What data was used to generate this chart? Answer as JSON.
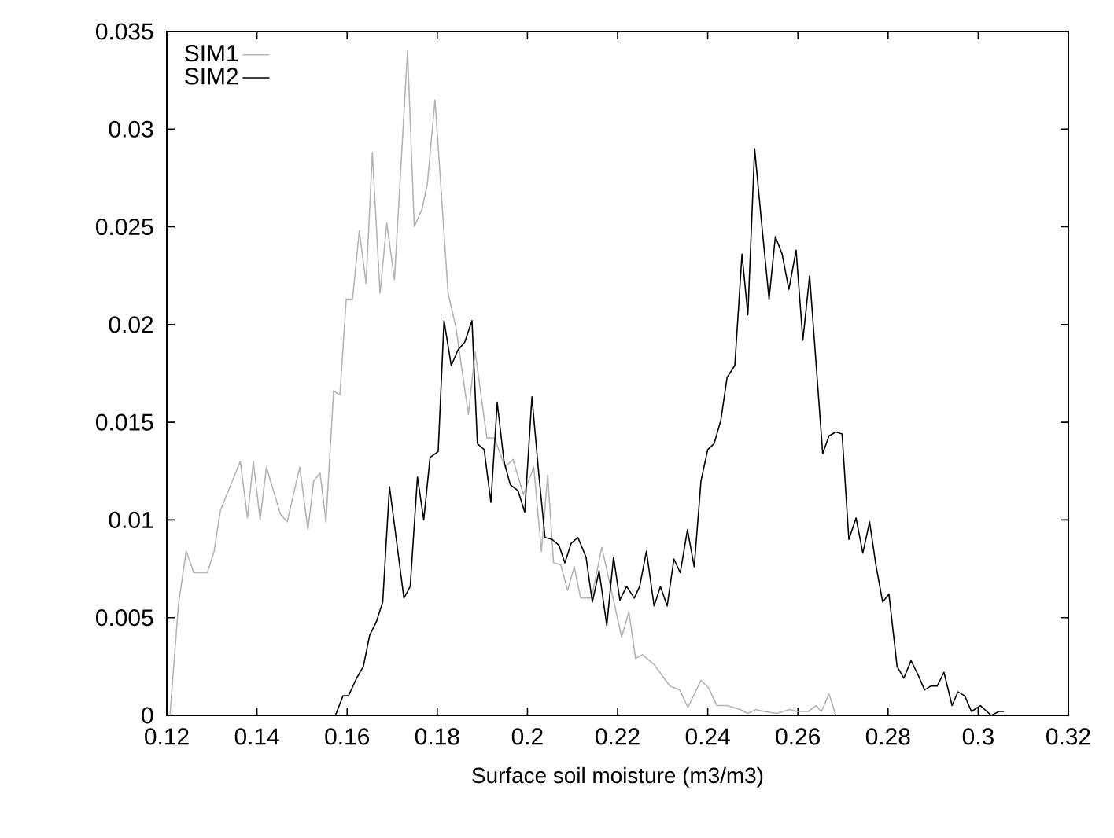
{
  "chart_data": {
    "type": "line",
    "xlabel": "Surface soil moisture (m3/m3)",
    "xlim": [
      0.12,
      0.32
    ],
    "ylim": [
      0,
      0.035
    ],
    "xticks": [
      0.12,
      0.14,
      0.16,
      0.18,
      0.2,
      0.22,
      0.24,
      0.26,
      0.28,
      0.3,
      0.32
    ],
    "yticks": [
      0,
      0.005,
      0.01,
      0.015,
      0.02,
      0.025,
      0.03,
      0.035
    ],
    "legend": "top left",
    "series": [
      {
        "name": "SIM1",
        "color": "#b4b4b4",
        "x": [
          0.1207,
          0.1226,
          0.1243,
          0.126,
          0.129,
          0.1305,
          0.1319,
          0.1363,
          0.1379,
          0.1392,
          0.1407,
          0.1421,
          0.1452,
          0.1467,
          0.1495,
          0.1513,
          0.1526,
          0.154,
          0.1553,
          0.157,
          0.1584,
          0.1598,
          0.1612,
          0.1627,
          0.1642,
          0.1656,
          0.1673,
          0.1688,
          0.1705,
          0.1734,
          0.1749,
          0.1766,
          0.1778,
          0.1795,
          0.1824,
          0.1841,
          0.1869,
          0.1884,
          0.191,
          0.1927,
          0.195,
          0.1968,
          0.1991,
          0.2014,
          0.2031,
          0.2045,
          0.2058,
          0.2074,
          0.2089,
          0.2104,
          0.2118,
          0.2142,
          0.2165,
          0.2188,
          0.2209,
          0.2225,
          0.224,
          0.2255,
          0.2281,
          0.2316,
          0.2338,
          0.2356,
          0.2385,
          0.2402,
          0.242,
          0.2443,
          0.2472,
          0.2489,
          0.2507,
          0.2524,
          0.2553,
          0.2582,
          0.2599,
          0.2623,
          0.264,
          0.2652,
          0.2669,
          0.2684
        ],
        "values": [
          0,
          0.0057,
          0.0084,
          0.0073,
          0.0073,
          0.0084,
          0.0105,
          0.013,
          0.0101,
          0.013,
          0.01,
          0.0127,
          0.0103,
          0.0099,
          0.0127,
          0.0095,
          0.012,
          0.0124,
          0.0099,
          0.0166,
          0.0164,
          0.0213,
          0.0213,
          0.0248,
          0.0221,
          0.0288,
          0.0216,
          0.0252,
          0.0223,
          0.034,
          0.025,
          0.0259,
          0.0272,
          0.0315,
          0.0216,
          0.0199,
          0.0154,
          0.0186,
          0.0142,
          0.0142,
          0.0127,
          0.0131,
          0.0113,
          0.0127,
          0.0084,
          0.0123,
          0.0078,
          0.0077,
          0.0064,
          0.0076,
          0.006,
          0.006,
          0.0086,
          0.0062,
          0.004,
          0.0053,
          0.0029,
          0.0031,
          0.0026,
          0.0015,
          0.0013,
          0.0004,
          0.0018,
          0.0014,
          0.0005,
          0.0005,
          0.0003,
          0.0001,
          0.0003,
          0.0002,
          0.0001,
          0.0003,
          0.0002,
          0.0002,
          0.0005,
          0.0002,
          0.0011,
          0
        ]
      },
      {
        "name": "SIM2",
        "color": "#000000",
        "x": [
          0.1574,
          0.1591,
          0.1603,
          0.1621,
          0.1636,
          0.165,
          0.1665,
          0.1679,
          0.1694,
          0.1726,
          0.174,
          0.1756,
          0.177,
          0.1784,
          0.1802,
          0.1815,
          0.1831,
          0.1846,
          0.1861,
          0.1877,
          0.1889,
          0.1904,
          0.1919,
          0.1933,
          0.1948,
          0.1962,
          0.1979,
          0.1994,
          0.201,
          0.2025,
          0.2039,
          0.2055,
          0.207,
          0.2083,
          0.2097,
          0.2112,
          0.213,
          0.2144,
          0.2159,
          0.2176,
          0.2191,
          0.2205,
          0.222,
          0.2237,
          0.2249,
          0.2264,
          0.2281,
          0.2295,
          0.231,
          0.2325,
          0.2339,
          0.2355,
          0.237,
          0.2385,
          0.24,
          0.2414,
          0.2429,
          0.2443,
          0.246,
          0.2476,
          0.2489,
          0.2504,
          0.2519,
          0.2536,
          0.255,
          0.2565,
          0.258,
          0.2596,
          0.2611,
          0.2626,
          0.264,
          0.2655,
          0.2669,
          0.2684,
          0.2698,
          0.2713,
          0.2729,
          0.2744,
          0.2759,
          0.2773,
          0.2788,
          0.2802,
          0.282,
          0.2835,
          0.2851,
          0.2866,
          0.2881,
          0.2895,
          0.2909,
          0.2924,
          0.2942,
          0.2955,
          0.297,
          0.2985,
          0.3005,
          0.3029,
          0.3046,
          0.3057
        ],
        "values": [
          0,
          0.001,
          0.001,
          0.0019,
          0.0025,
          0.0041,
          0.0048,
          0.0058,
          0.0117,
          0.006,
          0.0066,
          0.0122,
          0.01,
          0.0132,
          0.0135,
          0.0202,
          0.0179,
          0.0187,
          0.0191,
          0.0202,
          0.0139,
          0.0136,
          0.0109,
          0.016,
          0.013,
          0.0118,
          0.0115,
          0.0104,
          0.0163,
          0.0124,
          0.0091,
          0.009,
          0.0087,
          0.0078,
          0.0088,
          0.0091,
          0.0081,
          0.0058,
          0.0074,
          0.0046,
          0.0081,
          0.0059,
          0.0066,
          0.006,
          0.0066,
          0.0084,
          0.0056,
          0.0066,
          0.0056,
          0.008,
          0.0073,
          0.0095,
          0.0076,
          0.012,
          0.0136,
          0.0139,
          0.0151,
          0.0173,
          0.0179,
          0.0236,
          0.0205,
          0.029,
          0.0253,
          0.0213,
          0.0245,
          0.0236,
          0.0218,
          0.0238,
          0.0192,
          0.0225,
          0.0181,
          0.0134,
          0.0143,
          0.0145,
          0.0144,
          0.009,
          0.0101,
          0.0083,
          0.0099,
          0.0077,
          0.0058,
          0.0062,
          0.0025,
          0.0019,
          0.0028,
          0.0021,
          0.0013,
          0.0015,
          0.0015,
          0.0022,
          0.0005,
          0.0012,
          0.001,
          0.0002,
          0.0005,
          0,
          0.0002,
          0.0002
        ]
      }
    ]
  }
}
